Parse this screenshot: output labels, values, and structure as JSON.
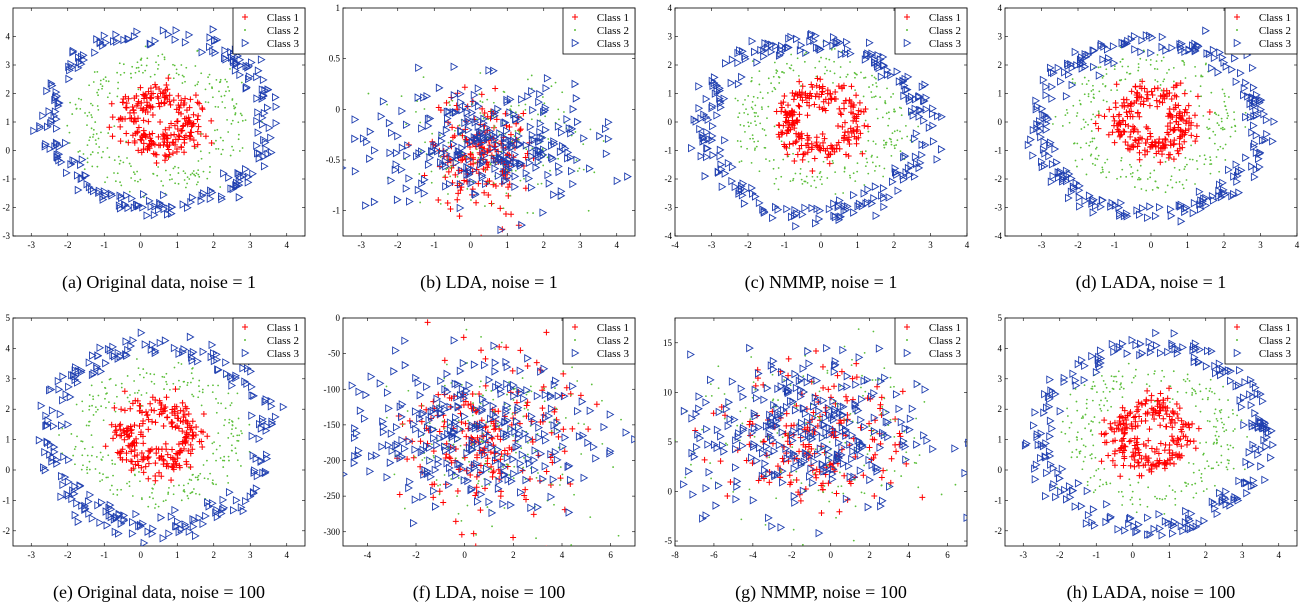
{
  "colors": {
    "class1": "#ff0000",
    "class2": "#5cbf3a",
    "class3": "#1f3fb0"
  },
  "chart_data": [
    {
      "type": "scatter",
      "caption": "(a) Original data, noise = 1",
      "xlim": [
        -3.5,
        4.5
      ],
      "ylim": [
        -3,
        5
      ],
      "xticks": [
        -3,
        -2,
        -1,
        0,
        1,
        2,
        3,
        4
      ],
      "yticks": [
        -3,
        -2,
        -1,
        0,
        1,
        2,
        3,
        4
      ],
      "legend": [
        "Class 1",
        "Class 2",
        "Class 3"
      ],
      "series": [
        {
          "name": "Class 1",
          "marker": "plus",
          "shape": "ring",
          "count": 240,
          "cx": 0.5,
          "cy": 1.0,
          "rx": 0.9,
          "ry": 0.9,
          "spread": 0.25
        },
        {
          "name": "Class 2",
          "marker": "dot",
          "shape": "ring",
          "count": 260,
          "cx": 0.5,
          "cy": 1.0,
          "rx": 2.0,
          "ry": 2.0,
          "spread": 0.3
        },
        {
          "name": "Class 3",
          "marker": "triangle",
          "shape": "ring",
          "count": 230,
          "cx": 0.5,
          "cy": 1.0,
          "rx": 3.0,
          "ry": 3.0,
          "spread": 0.18
        }
      ]
    },
    {
      "type": "scatter",
      "caption": "(b) LDA, noise = 1",
      "xlim": [
        -3.5,
        4.5
      ],
      "ylim": [
        -1.25,
        1
      ],
      "xticks": [
        -3,
        -2,
        -1,
        0,
        1,
        2,
        3,
        4
      ],
      "yticks": [
        -1,
        -0.5,
        0,
        0.5,
        1
      ],
      "legend": [
        "Class 1",
        "Class 2",
        "Class 3"
      ],
      "series": [
        {
          "name": "Class 1",
          "marker": "plus",
          "shape": "blob",
          "count": 200,
          "cx": 0.3,
          "cy": -0.45,
          "rx": 0.7,
          "ry": 0.28,
          "spread": 0
        },
        {
          "name": "Class 2",
          "marker": "dot",
          "shape": "blob",
          "count": 200,
          "cx": 0.6,
          "cy": -0.35,
          "rx": 1.3,
          "ry": 0.3,
          "spread": 0
        },
        {
          "name": "Class 3",
          "marker": "triangle",
          "shape": "blob",
          "count": 300,
          "cx": 0.4,
          "cy": -0.35,
          "rx": 1.5,
          "ry": 0.28,
          "spread": 0
        }
      ]
    },
    {
      "type": "scatter",
      "caption": "(c) NMMP, noise = 1",
      "xlim": [
        -4,
        4
      ],
      "ylim": [
        -4,
        4
      ],
      "xticks": [
        -4,
        -3,
        -2,
        -1,
        0,
        1,
        2,
        3,
        4
      ],
      "yticks": [
        -4,
        -3,
        -2,
        -1,
        0,
        1,
        2,
        3,
        4
      ],
      "legend": [
        "Class 1",
        "Class 2",
        "Class 3"
      ],
      "series": [
        {
          "name": "Class 1",
          "marker": "plus",
          "shape": "ring",
          "count": 240,
          "cx": 0.0,
          "cy": 0.0,
          "rx": 0.9,
          "ry": 1.05,
          "spread": 0.2
        },
        {
          "name": "Class 2",
          "marker": "dot",
          "shape": "ring",
          "count": 260,
          "cx": 0.0,
          "cy": 0.0,
          "rx": 2.0,
          "ry": 2.0,
          "spread": 0.3
        },
        {
          "name": "Class 3",
          "marker": "triangle",
          "shape": "ring",
          "count": 260,
          "cx": -0.2,
          "cy": -0.2,
          "rx": 3.0,
          "ry": 3.0,
          "spread": 0.22
        }
      ]
    },
    {
      "type": "scatter",
      "caption": "(d) LADA, noise = 1",
      "xlim": [
        -4,
        4
      ],
      "ylim": [
        -4,
        4
      ],
      "xticks": [
        -3,
        -2,
        -1,
        0,
        1,
        2,
        3,
        4
      ],
      "yticks": [
        -4,
        -3,
        -2,
        -1,
        0,
        1,
        2,
        3,
        4
      ],
      "legend": [
        "Class 1",
        "Class 2",
        "Class 3"
      ],
      "series": [
        {
          "name": "Class 1",
          "marker": "plus",
          "shape": "ring",
          "count": 240,
          "cx": 0.0,
          "cy": 0.0,
          "rx": 0.9,
          "ry": 1.0,
          "spread": 0.25
        },
        {
          "name": "Class 2",
          "marker": "dot",
          "shape": "ring",
          "count": 260,
          "cx": 0.0,
          "cy": 0.0,
          "rx": 2.0,
          "ry": 2.0,
          "spread": 0.3
        },
        {
          "name": "Class 3",
          "marker": "triangle",
          "shape": "ring",
          "count": 260,
          "cx": 0.0,
          "cy": -0.2,
          "rx": 3.0,
          "ry": 3.0,
          "spread": 0.2
        }
      ]
    },
    {
      "type": "scatter",
      "caption": "(e) Original data, noise = 100",
      "xlim": [
        -3.5,
        4.5
      ],
      "ylim": [
        -2.5,
        5
      ],
      "xticks": [
        -3,
        -2,
        -1,
        0,
        1,
        2,
        3,
        4
      ],
      "yticks": [
        -2,
        -1,
        0,
        1,
        2,
        3,
        4,
        5
      ],
      "legend": [
        "Class 1",
        "Class 2",
        "Class 3"
      ],
      "series": [
        {
          "name": "Class 1",
          "marker": "plus",
          "shape": "ring",
          "count": 240,
          "cx": 0.5,
          "cy": 1.1,
          "rx": 0.9,
          "ry": 0.95,
          "spread": 0.25
        },
        {
          "name": "Class 2",
          "marker": "dot",
          "shape": "ring",
          "count": 260,
          "cx": 0.5,
          "cy": 1.1,
          "rx": 2.0,
          "ry": 2.0,
          "spread": 0.3
        },
        {
          "name": "Class 3",
          "marker": "triangle",
          "shape": "ring",
          "count": 240,
          "cx": 0.5,
          "cy": 1.1,
          "rx": 3.0,
          "ry": 3.0,
          "spread": 0.2
        }
      ]
    },
    {
      "type": "scatter",
      "caption": "(f) LDA, noise = 100",
      "xlim": [
        -5,
        7
      ],
      "ylim": [
        -320,
        0
      ],
      "xticks": [
        -4,
        -2,
        0,
        2,
        4,
        6
      ],
      "yticks": [
        -300,
        -250,
        -200,
        -150,
        -100,
        -50,
        0
      ],
      "legend": [
        "Class 1",
        "Class 2",
        "Class 3"
      ],
      "series": [
        {
          "name": "Class 1",
          "marker": "plus",
          "shape": "blob",
          "count": 220,
          "cx": 1.0,
          "cy": -170,
          "rx": 1.6,
          "ry": 55,
          "spread": 0
        },
        {
          "name": "Class 2",
          "marker": "dot",
          "shape": "blob",
          "count": 220,
          "cx": 1.0,
          "cy": -170,
          "rx": 2.3,
          "ry": 60,
          "spread": 0
        },
        {
          "name": "Class 3",
          "marker": "triangle",
          "shape": "blob",
          "count": 320,
          "cx": 0.2,
          "cy": -160,
          "rx": 2.6,
          "ry": 50,
          "spread": 0
        }
      ]
    },
    {
      "type": "scatter",
      "caption": "(g) NMMP, noise = 100",
      "xlim": [
        -8,
        7
      ],
      "ylim": [
        -5.5,
        17.5
      ],
      "xticks": [
        -8,
        -6,
        -4,
        -2,
        0,
        2,
        4,
        6
      ],
      "yticks": [
        -5,
        0,
        5,
        10,
        15
      ],
      "legend": [
        "Class 1",
        "Class 2",
        "Class 3"
      ],
      "series": [
        {
          "name": "Class 1",
          "marker": "plus",
          "shape": "blob",
          "count": 200,
          "cx": -0.5,
          "cy": 5.5,
          "rx": 2.2,
          "ry": 3.5,
          "spread": 0
        },
        {
          "name": "Class 2",
          "marker": "dot",
          "shape": "blob",
          "count": 200,
          "cx": -0.5,
          "cy": 5.5,
          "rx": 3.2,
          "ry": 4.5,
          "spread": 0
        },
        {
          "name": "Class 3",
          "marker": "triangle",
          "shape": "blob",
          "count": 320,
          "cx": -1.5,
          "cy": 6.0,
          "rx": 3.0,
          "ry": 4.0,
          "spread": 0
        }
      ]
    },
    {
      "type": "scatter",
      "caption": "(h) LADA, noise = 100",
      "xlim": [
        -3.5,
        4.5
      ],
      "ylim": [
        -2.5,
        5
      ],
      "xticks": [
        -3,
        -2,
        -1,
        0,
        1,
        2,
        3,
        4
      ],
      "yticks": [
        -2,
        -1,
        0,
        1,
        2,
        3,
        4,
        5
      ],
      "legend": [
        "Class 1",
        "Class 2",
        "Class 3"
      ],
      "series": [
        {
          "name": "Class 1",
          "marker": "plus",
          "shape": "ring",
          "count": 240,
          "cx": 0.5,
          "cy": 1.1,
          "rx": 0.9,
          "ry": 0.95,
          "spread": 0.25
        },
        {
          "name": "Class 2",
          "marker": "dot",
          "shape": "ring",
          "count": 260,
          "cx": 0.5,
          "cy": 1.1,
          "rx": 2.0,
          "ry": 2.0,
          "spread": 0.3
        },
        {
          "name": "Class 3",
          "marker": "triangle",
          "shape": "ring",
          "count": 240,
          "cx": 0.5,
          "cy": 1.1,
          "rx": 3.0,
          "ry": 3.0,
          "spread": 0.2
        }
      ]
    }
  ]
}
